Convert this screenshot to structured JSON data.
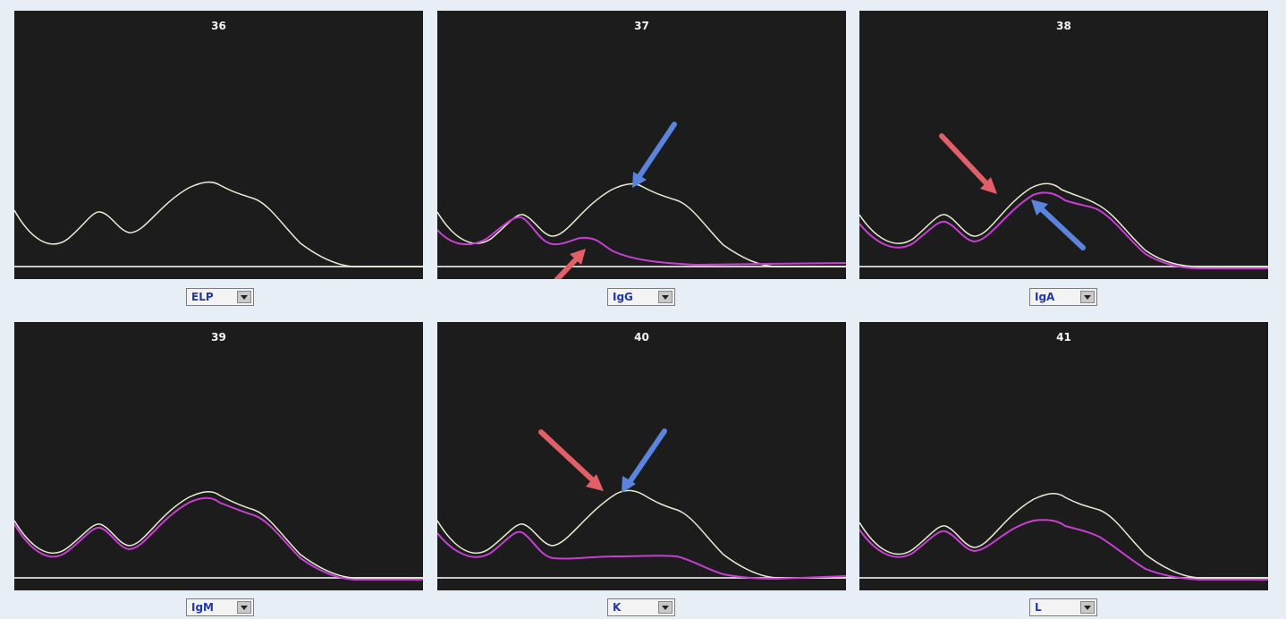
{
  "colors": {
    "background": "#e7eef6",
    "panel": "#1b1c1b",
    "reference_trace": "#e9ecd2",
    "immuno_trace": "#c83ed3",
    "red_arrow": "#e25f69",
    "blue_arrow": "#5a84dd",
    "selector_text": "#1f3aa8"
  },
  "panels": [
    {
      "number": "36",
      "select_value": "ELP"
    },
    {
      "number": "37",
      "select_value": "IgG"
    },
    {
      "number": "38",
      "select_value": "IgA"
    },
    {
      "number": "39",
      "select_value": "IgM"
    },
    {
      "number": "40",
      "select_value": "K"
    },
    {
      "number": "41",
      "select_value": "L"
    }
  ],
  "icons": {
    "selector_button": "dropdown-arrow-icon",
    "annotation": "arrow-icon"
  }
}
